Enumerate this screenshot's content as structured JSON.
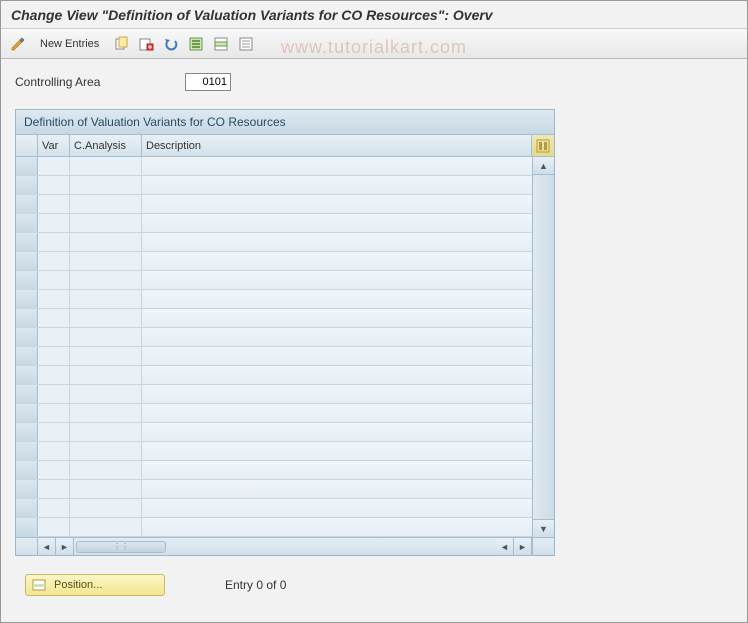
{
  "title": "Change View \"Definition of Valuation Variants for CO Resources\": Overv",
  "watermark": "www.tutorialkart.com",
  "toolbar": {
    "new_entries_label": "New Entries"
  },
  "fields": {
    "controlling_area_label": "Controlling Area",
    "controlling_area_value": "0101"
  },
  "table": {
    "title": "Definition of Valuation Variants for CO Resources",
    "columns": {
      "var": "Var",
      "canalysis": "C.Analysis",
      "description": "Description"
    },
    "row_count": 20,
    "column_widths": {
      "select": 22,
      "var": 32,
      "canalysis": 72,
      "desc_flex": 1
    }
  },
  "footer": {
    "position_label": "Position...",
    "entry_text": "Entry 0 of 0"
  },
  "colors": {
    "panel_border": "#9db7c9",
    "panel_bg": "#e4edf3",
    "header_grad_top": "#dde9f1",
    "header_grad_bottom": "#c7d8e4",
    "row_border": "#c7d6e0",
    "title_text": "#2a4a63",
    "body_bg": "#f2f2f2",
    "position_btn_top": "#fdf6c8",
    "position_btn_bottom": "#f3e68f",
    "watermark_color": "rgba(200,120,80,0.35)"
  },
  "icons": {
    "pencil": "pencil-icon",
    "copy": "copy-icon",
    "delete": "delete-icon",
    "undo": "undo-icon",
    "select_all": "select-all-icon",
    "select_block": "select-block-icon",
    "deselect": "deselect-icon",
    "config": "config-columns-icon",
    "position": "position-icon"
  }
}
